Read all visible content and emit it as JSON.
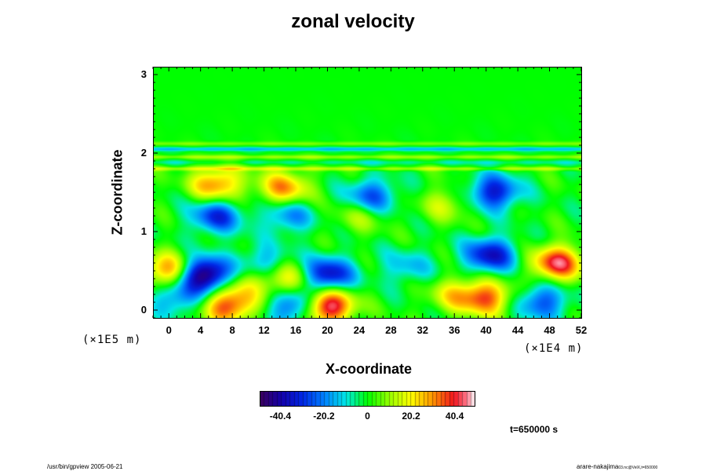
{
  "title": "zonal velocity",
  "footer_left": "/usr/bin/gpview 2005-06-21",
  "footer_right": "arare-nakajima",
  "footer_right_sub": "03.nc@VelX,t=650000",
  "time_label": "t=650000 s",
  "chart_data": {
    "type": "heatmap",
    "title": "zonal velocity",
    "xlabel": "X-coordinate",
    "ylabel": "Z-coordinate",
    "x_scale_label": "(×1E4 m)",
    "y_scale_label": "(×1E5 m)",
    "xlim": [
      -2,
      52
    ],
    "ylim": [
      -0.1,
      3.1
    ],
    "x_ticks": [
      "0",
      "4",
      "8",
      "12",
      "16",
      "20",
      "24",
      "28",
      "32",
      "36",
      "40",
      "44",
      "48",
      "52"
    ],
    "y_ticks": [
      "0",
      "1",
      "2",
      "3"
    ],
    "colorbar": {
      "range": [
        -50,
        50
      ],
      "ticks": [
        "-40.4",
        "-20.2",
        "0",
        "20.2",
        "40.4"
      ]
    },
    "features": [
      {
        "x": 20,
        "z": 0.05,
        "value": 50
      },
      {
        "x": 7.5,
        "z": 0.05,
        "value": 38
      },
      {
        "x": 40,
        "z": 0.15,
        "value": 34
      },
      {
        "x": 49,
        "z": 0.6,
        "value": 42
      },
      {
        "x": 6,
        "z": 1.6,
        "value": 32
      },
      {
        "x": 14.5,
        "z": 1.55,
        "value": 30
      },
      {
        "x": 0,
        "z": 0.5,
        "value": 32
      },
      {
        "x": 4.5,
        "z": 0.45,
        "value": -52
      },
      {
        "x": 20,
        "z": 0.45,
        "value": -38
      },
      {
        "x": 40.5,
        "z": 0.7,
        "value": -36
      },
      {
        "x": 41,
        "z": 1.5,
        "value": -34
      },
      {
        "x": 6,
        "z": 1.2,
        "value": -30
      },
      {
        "x": 25.5,
        "z": 1.45,
        "value": -26
      },
      {
        "x": 15,
        "z": 1.2,
        "value": -20
      },
      {
        "x": 16,
        "z": 0.05,
        "value": -30
      },
      {
        "x": 47,
        "z": 0.1,
        "value": -26
      },
      {
        "x": 30,
        "z": 0.55,
        "value": -14
      },
      {
        "x": 12,
        "z": 0.6,
        "value": -18
      },
      {
        "x": 35,
        "z": 1.35,
        "value": 14
      },
      {
        "x": 24,
        "z": 1.2,
        "value": 12
      },
      {
        "x": 10,
        "z": 0.35,
        "value": 14
      },
      {
        "x": 15,
        "z": 0.4,
        "value": 22
      },
      {
        "x": 36,
        "z": 0.2,
        "value": 18
      },
      {
        "x": 1,
        "z": 0.15,
        "value": -20
      }
    ],
    "bands": [
      {
        "z": 2.12,
        "value": 8
      },
      {
        "z": 2.05,
        "value": -14
      },
      {
        "z": 1.95,
        "value": 10
      },
      {
        "z": 1.88,
        "value": -6
      },
      {
        "z": 1.8,
        "value": 12
      }
    ]
  }
}
